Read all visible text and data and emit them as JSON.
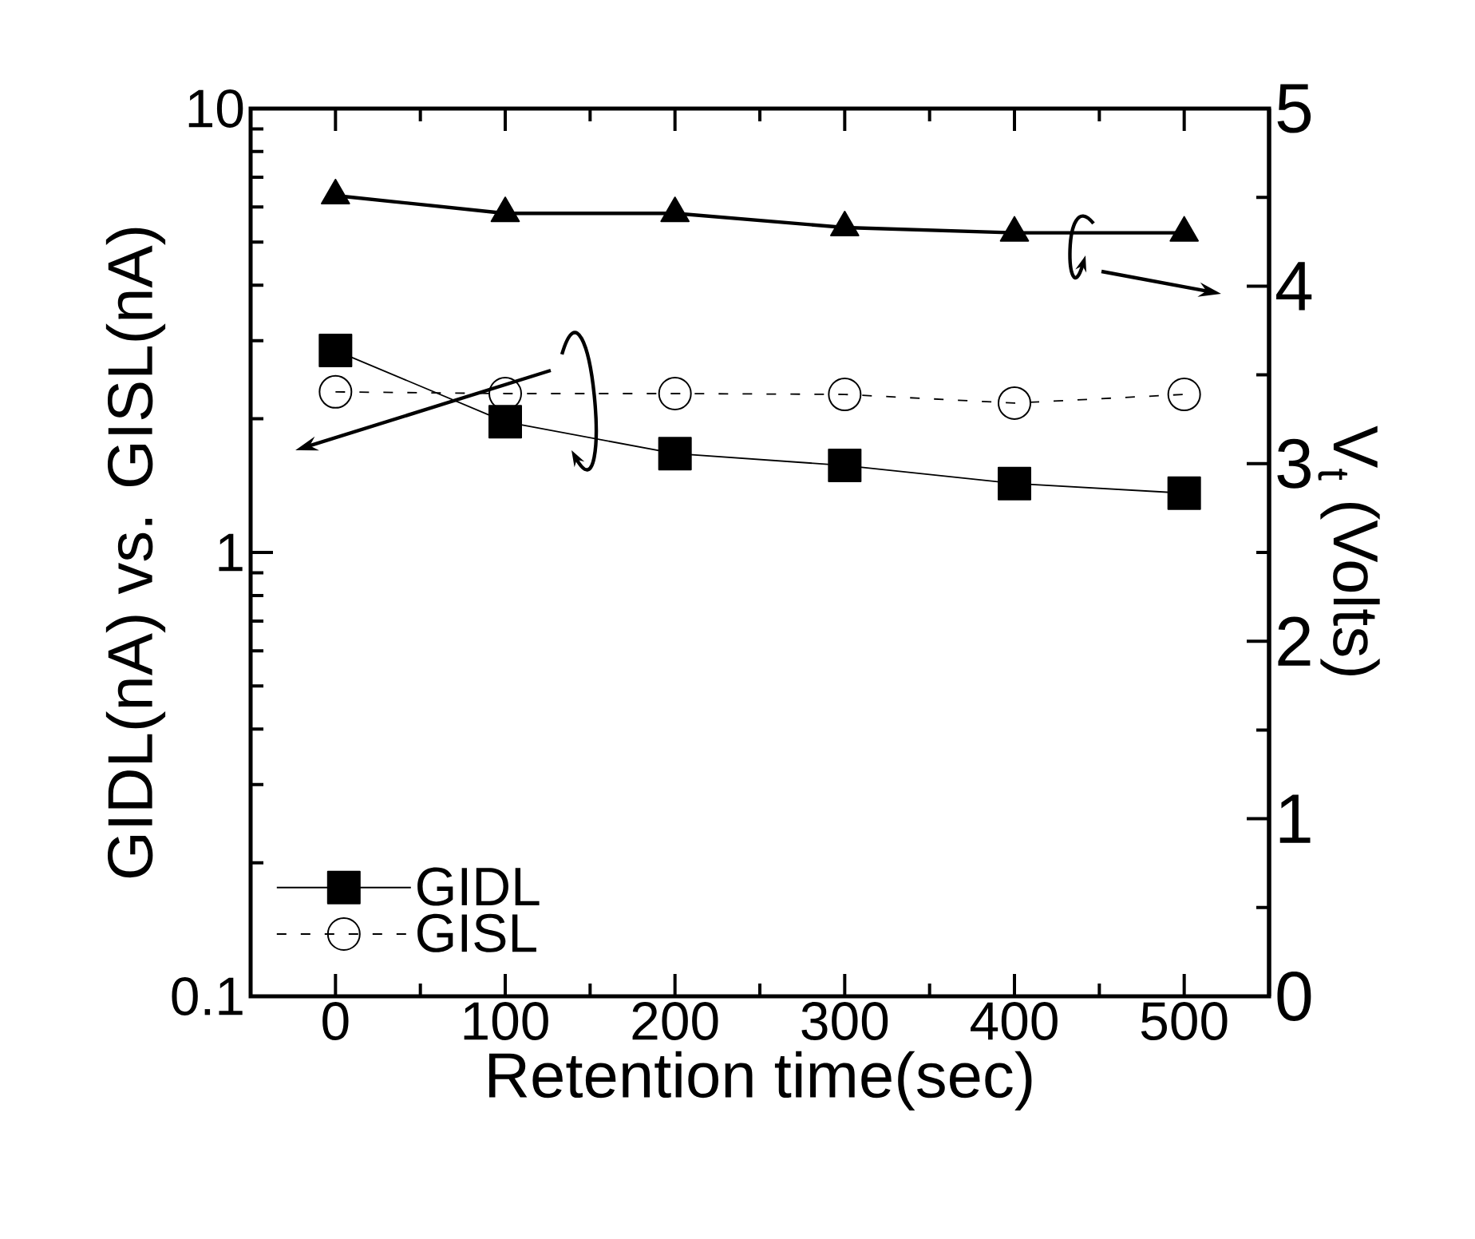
{
  "chart_data": {
    "type": "line",
    "xlabel": "Retention time(sec)",
    "ylabel": "GIDL(nA) vs. GISL(nA)",
    "y2label": "V$_{t}$ (Volts)",
    "x": [
      0,
      100,
      200,
      300,
      400,
      500
    ],
    "series": [
      {
        "name": "GIDL",
        "color": "#000000",
        "marker": "square",
        "line_style": "solid",
        "values": [
          2.85,
          1.97,
          1.67,
          1.57,
          1.43,
          1.36
        ]
      },
      {
        "name": "GISL",
        "color": "#000000",
        "marker": "circle",
        "line_style": "dashed",
        "values": [
          2.3,
          2.28,
          2.28,
          2.27,
          2.17,
          2.27
        ]
      },
      {
        "color": "#000000",
        "marker": "triangle",
        "line_style": "solid",
        "axis": "y2",
        "values": [
          4.51,
          4.41,
          4.41,
          4.33,
          4.3,
          4.3
        ]
      }
    ],
    "xlim": [
      -50,
      550
    ],
    "xticks": [
      0,
      100,
      200,
      300,
      400,
      500
    ],
    "log": "y",
    "ylim": [
      0.1,
      10
    ],
    "yticks": [
      0.1,
      1,
      10
    ],
    "y2lim": [
      0,
      5
    ],
    "y2ticks": [
      0,
      1,
      2,
      3,
      4,
      5
    ],
    "grid": false,
    "legend": "bottom left"
  }
}
